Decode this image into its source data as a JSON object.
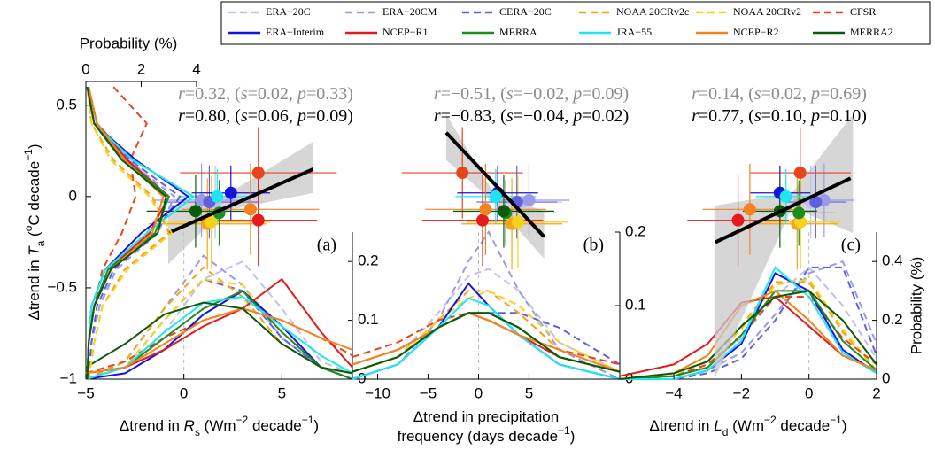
{
  "chart_data": {
    "type": "scatter",
    "ylabel": [
      {
        "text": "Δtrend in ",
        "format": "normal"
      },
      {
        "text": "T",
        "format": "italic"
      },
      {
        "text": "a",
        "format": "sub"
      },
      {
        "text": " (",
        "format": "normal"
      },
      {
        "text": "o",
        "format": "sup"
      },
      {
        "text": "C decade",
        "format": "normal"
      },
      {
        "text": "−1",
        "format": "sup"
      },
      {
        "text": ")",
        "format": "normal"
      }
    ],
    "ylim": [
      -1,
      0.63
    ],
    "yticks": [
      {
        "value": -1,
        "label": "−1"
      },
      {
        "value": -0.5,
        "label": "−0.5"
      },
      0,
      0.5
    ],
    "top_xlabel": "Probability (%)",
    "top_xlim": [
      0,
      4
    ],
    "top_xticks": [
      0,
      2,
      4
    ],
    "density_ylabel": "Probability (%)",
    "ta_grid": [
      -1,
      -0.8,
      -0.6,
      -0.4,
      -0.2,
      0,
      0.2,
      0.4,
      0.6
    ],
    "panels": [
      {
        "label": "(a)",
        "xlabel": [
          [
            {
              "text": "Δtrend in ",
              "format": "normal"
            },
            {
              "text": "R",
              "format": "italic"
            },
            {
              "text": "s",
              "format": "sub"
            },
            {
              "text": " (Wm",
              "format": "normal"
            },
            {
              "text": "−2",
              "format": "sup"
            },
            {
              "text": " decade",
              "format": "normal"
            },
            {
              "text": "−1",
              "format": "sup"
            },
            {
              "text": ")",
              "format": "normal"
            }
          ]
        ],
        "xlim": [
          -5,
          8.6
        ],
        "xticks": [
          {
            "value": -5,
            "label": "−5"
          },
          0,
          5
        ],
        "density_ylim": [
          0,
          0.25
        ],
        "density_yticks": [
          0,
          0.1,
          0.2
        ],
        "density_x": [
          -5,
          -3,
          -1,
          1,
          3,
          5,
          7,
          8.6
        ],
        "fit": {
          "x": [
            -0.8,
            6.6
          ],
          "y": [
            -0.2,
            0.15
          ]
        },
        "band": {
          "x": [
            -0.8,
            2,
            6.6
          ],
          "lower": [
            -0.37,
            -0.08,
            0.02
          ],
          "upper": [
            -0.05,
            0.0,
            0.3
          ]
        },
        "annotations": [
          {
            "color": "#8c8c8c",
            "parts": [
              "r",
              "=0.32, (",
              "s",
              "=0.02, ",
              "p",
              "=0.33)"
            ]
          },
          {
            "color": "#000000",
            "parts": [
              "r",
              "=0.80, (",
              "s",
              "=0.06, ",
              "p",
              "=0.09)"
            ]
          }
        ]
      },
      {
        "label": "(b)",
        "xlabel": [
          [
            {
              "text": "Δtrend in precipitation",
              "format": "normal"
            }
          ],
          [
            {
              "text": "frequency (days decade",
              "format": "normal"
            },
            {
              "text": "−1",
              "format": "sup"
            },
            {
              "text": ")",
              "format": "normal"
            }
          ]
        ],
        "xlim": [
          -12.5,
          14
        ],
        "xticks": [
          {
            "value": -10,
            "label": "−10"
          },
          {
            "value": -5,
            "label": "−5"
          },
          0,
          5
        ],
        "density_ylim": [
          0,
          0.2
        ],
        "density_yticks": [
          0,
          0.1,
          0.2
        ],
        "density_x": [
          -12.5,
          -8,
          -4,
          -1,
          1,
          4,
          8,
          14
        ],
        "fit": {
          "x": [
            -3.2,
            6.5
          ],
          "y": [
            0.35,
            -0.22
          ]
        },
        "band": {
          "x": [
            -3.2,
            1.5,
            6.5
          ],
          "lower": [
            0.2,
            -0.03,
            -0.34
          ],
          "upper": [
            0.45,
            0.02,
            -0.08
          ]
        },
        "annotations": [
          {
            "color": "#8c8c8c",
            "parts": [
              "r",
              "=−0.51, (",
              "s",
              "=−0.02, ",
              "p",
              "=0.09)"
            ]
          },
          {
            "color": "#000000",
            "parts": [
              "r",
              "=−0.83, (",
              "s",
              "=−0.04, ",
              "p",
              "=0.02)"
            ]
          }
        ]
      },
      {
        "label": "(c)",
        "xlabel": [
          [
            {
              "text": "Δtrend in ",
              "format": "normal"
            },
            {
              "text": "L",
              "format": "italic"
            },
            {
              "text": "d",
              "format": "sub"
            },
            {
              "text": " (Wm",
              "format": "normal"
            },
            {
              "text": "−2",
              "format": "sup"
            },
            {
              "text": " decade",
              "format": "normal"
            },
            {
              "text": "−1",
              "format": "sup"
            },
            {
              "text": ")",
              "format": "normal"
            }
          ]
        ],
        "xlim": [
          -5.6,
          2
        ],
        "xticks": [
          {
            "value": -4,
            "label": "−4"
          },
          {
            "value": -2,
            "label": "−2"
          },
          0,
          2
        ],
        "density_ylim": [
          0,
          0.5
        ],
        "density_yticks": [
          0,
          0.2,
          0.4
        ],
        "density_x": [
          -5.6,
          -4,
          -3,
          -2,
          -1,
          0,
          1,
          2
        ],
        "fit": {
          "x": [
            -2.77,
            1.23
          ],
          "y": [
            -0.25,
            0.1
          ]
        },
        "band": {
          "x": [
            -2.8,
            -0.5,
            1.3
          ],
          "lower": [
            -1.0,
            -0.06,
            -0.2
          ],
          "upper": [
            -0.05,
            0.02,
            0.45
          ]
        },
        "annotations": [
          {
            "color": "#8c8c8c",
            "parts": [
              "r",
              "=0.14, (",
              "s",
              "=0.02, ",
              "p",
              "=0.69)"
            ]
          },
          {
            "color": "#000000",
            "parts": [
              "r",
              "=0.77, (",
              "s",
              "=0.10, ",
              "p",
              "=0.10)"
            ]
          }
        ]
      }
    ],
    "series": [
      {
        "name": "ERA−20C",
        "color": "#c0c0ea",
        "dashed": true,
        "y": -0.03,
        "yerr": 0.2,
        "x": [
          1.6,
          4.3,
          0.05
        ],
        "xerr": [
          2.5,
          4,
          0.9
        ],
        "ta_density": [
          0.1,
          0.2,
          0.5,
          1.0,
          2.2,
          3.0,
          1.6,
          0.4,
          0.1
        ],
        "density": [
          [
            0,
            0.02,
            0.08,
            0.17,
            0.2,
            0.12,
            0.03,
            0.01
          ],
          [
            0.01,
            0.03,
            0.09,
            0.14,
            0.15,
            0.12,
            0.05,
            0.01
          ],
          [
            0,
            0.01,
            0.05,
            0.14,
            0.28,
            0.38,
            0.25,
            0.07
          ]
        ]
      },
      {
        "name": "ERA−20CM",
        "color": "#9a9ae6",
        "dashed": true,
        "y": -0.02,
        "yerr": 0.2,
        "x": [
          0.9,
          5.0,
          0.45
        ],
        "xerr": [
          2.5,
          4,
          0.9
        ],
        "ta_density": [
          0.1,
          0.2,
          0.5,
          1.1,
          2.6,
          3.2,
          1.5,
          0.3,
          0.1
        ],
        "density": [
          [
            0,
            0.03,
            0.12,
            0.21,
            0.16,
            0.07,
            0.02,
            0.01
          ],
          [
            0,
            0.02,
            0.08,
            0.16,
            0.2,
            0.12,
            0.04,
            0
          ],
          [
            0,
            0,
            0.03,
            0.09,
            0.22,
            0.36,
            0.4,
            0.12
          ]
        ]
      },
      {
        "name": "CERA−20C",
        "color": "#5f5fe0",
        "dashed": true,
        "y": -0.03,
        "yerr": 0.2,
        "x": [
          1.3,
          3.8,
          0.2
        ],
        "xerr": [
          2.5,
          4,
          0.9
        ],
        "ta_density": [
          0.1,
          0.2,
          0.4,
          1.0,
          2.5,
          3.4,
          1.6,
          0.4,
          0.1
        ],
        "density": [
          [
            0,
            0.02,
            0.1,
            0.17,
            0.15,
            0.07,
            0.02,
            0.01
          ],
          [
            0.01,
            0.03,
            0.07,
            0.09,
            0.09,
            0.09,
            0.07,
            0.02
          ],
          [
            0,
            0,
            0.02,
            0.07,
            0.2,
            0.38,
            0.38,
            0.08
          ]
        ]
      },
      {
        "name": "NOAA 20CRv2c",
        "color": "#f5a31a",
        "dashed": true,
        "y": -0.15,
        "yerr": 0.25,
        "x": [
          1.2,
          3.3,
          -0.35
        ],
        "xerr": [
          3,
          5,
          1.2
        ],
        "ta_density": [
          0.1,
          0.3,
          0.6,
          1.4,
          3.0,
          2.4,
          1.0,
          0.2,
          0.05
        ],
        "density": [
          [
            0,
            0.03,
            0.12,
            0.19,
            0.14,
            0.06,
            0.02,
            0.01
          ],
          [
            0.01,
            0.03,
            0.08,
            0.12,
            0.12,
            0.09,
            0.04,
            0.01
          ],
          [
            0,
            0.01,
            0.06,
            0.18,
            0.33,
            0.33,
            0.16,
            0.03
          ]
        ]
      },
      {
        "name": "NOAA 20CRv2",
        "color": "#f7d21a",
        "dashed": true,
        "y": -0.14,
        "yerr": 0.25,
        "x": [
          1.4,
          3.9,
          -0.25
        ],
        "xerr": [
          3,
          5,
          1.2
        ],
        "ta_density": [
          0.1,
          0.3,
          0.6,
          1.5,
          3.1,
          2.3,
          0.9,
          0.2,
          0.05
        ],
        "density": [
          [
            0,
            0.02,
            0.1,
            0.17,
            0.16,
            0.08,
            0.02,
            0.01
          ],
          [
            0.01,
            0.03,
            0.08,
            0.11,
            0.12,
            0.1,
            0.05,
            0.01
          ],
          [
            0,
            0.01,
            0.06,
            0.17,
            0.32,
            0.34,
            0.17,
            0.03
          ]
        ]
      },
      {
        "name": "CFSR",
        "color": "#e8441e",
        "dashed": true,
        "y": 0.13,
        "yerr": 0.25,
        "x": [
          3.8,
          -1.6,
          -0.26
        ],
        "xerr": [
          4,
          6,
          1.5
        ],
        "ta_density": [
          0.05,
          0.1,
          0.3,
          0.6,
          1.3,
          1.8,
          1.6,
          2.2,
          1.0
        ],
        "density": [
          [
            0.01,
            0.03,
            0.07,
            0.1,
            0.12,
            0.1,
            0.07,
            0.04
          ],
          [
            0.03,
            0.05,
            0.08,
            0.09,
            0.08,
            0.06,
            0.04,
            0.02
          ],
          [
            0,
            0.01,
            0.05,
            0.15,
            0.28,
            0.28,
            0.14,
            0.05
          ]
        ]
      },
      {
        "name": "ERA−Interim",
        "color": "#1414e0",
        "dashed": false,
        "y": 0.02,
        "yerr": 0.15,
        "x": [
          2.4,
          1.9,
          -0.86
        ],
        "xerr": [
          2,
          4,
          0.9
        ],
        "ta_density": [
          0.05,
          0.1,
          0.2,
          0.7,
          2.0,
          3.7,
          1.8,
          0.3,
          0.05
        ],
        "density": [
          [
            0,
            0.01,
            0.05,
            0.11,
            0.15,
            0.09,
            0.02,
            0
          ],
          [
            0,
            0.02,
            0.07,
            0.13,
            0.1,
            0.06,
            0.02,
            0
          ],
          [
            0,
            0,
            0.03,
            0.12,
            0.36,
            0.3,
            0.1,
            0.02
          ]
        ]
      },
      {
        "name": "NCEP−R1",
        "color": "#e41a1c",
        "dashed": false,
        "y": -0.13,
        "yerr": 0.25,
        "x": [
          3.8,
          0.4,
          -2.1
        ],
        "xerr": [
          3,
          6,
          1.5
        ],
        "ta_density": [
          0.05,
          0.1,
          0.3,
          0.8,
          2.3,
          3.0,
          1.5,
          0.4,
          0.1
        ],
        "density": [
          [
            0.01,
            0.02,
            0.05,
            0.09,
            0.12,
            0.17,
            0.08,
            0.02
          ],
          [
            0.02,
            0.04,
            0.07,
            0.09,
            0.08,
            0.06,
            0.03,
            0.01
          ],
          [
            0.01,
            0.05,
            0.12,
            0.26,
            0.28,
            0.18,
            0.08,
            0.03
          ]
        ]
      },
      {
        "name": "MERRA",
        "color": "#1e8c1e",
        "dashed": false,
        "y": -0.09,
        "yerr": 0.18,
        "x": [
          1.8,
          2.7,
          -0.3
        ],
        "xerr": [
          2.5,
          5,
          1.1
        ],
        "ta_density": [
          0.05,
          0.1,
          0.3,
          0.8,
          2.5,
          3.0,
          1.4,
          0.3,
          0.05
        ],
        "density": [
          [
            0,
            0.02,
            0.07,
            0.12,
            0.15,
            0.08,
            0.02,
            0
          ],
          [
            0.01,
            0.03,
            0.07,
            0.09,
            0.09,
            0.07,
            0.03,
            0.01
          ],
          [
            0,
            0.01,
            0.04,
            0.15,
            0.3,
            0.3,
            0.13,
            0.03
          ]
        ]
      },
      {
        "name": "JRA−55",
        "color": "#1ee6f0",
        "dashed": false,
        "y": 0.0,
        "yerr": 0.15,
        "x": [
          1.7,
          1.7,
          -0.68
        ],
        "xerr": [
          2,
          4,
          0.9
        ],
        "ta_density": [
          0.05,
          0.1,
          0.2,
          0.7,
          2.2,
          3.9,
          1.7,
          0.3,
          0.05
        ],
        "density": [
          [
            0,
            0.02,
            0.08,
            0.13,
            0.14,
            0.09,
            0.04,
            0.01
          ],
          [
            0,
            0.02,
            0.07,
            0.11,
            0.1,
            0.06,
            0.02,
            0
          ],
          [
            0,
            0,
            0.03,
            0.13,
            0.38,
            0.28,
            0.09,
            0.02
          ]
        ]
      },
      {
        "name": "NCEP−R2",
        "color": "#f5821e",
        "dashed": false,
        "y": -0.07,
        "yerr": 0.25,
        "x": [
          3.4,
          0.7,
          -1.75
        ],
        "xerr": [
          3.5,
          6,
          1.4
        ],
        "ta_density": [
          0.05,
          0.1,
          0.3,
          0.9,
          2.4,
          2.8,
          1.4,
          0.4,
          0.1
        ],
        "density": [
          [
            0.01,
            0.02,
            0.06,
            0.1,
            0.12,
            0.1,
            0.07,
            0.05
          ],
          [
            0.02,
            0.04,
            0.07,
            0.09,
            0.08,
            0.06,
            0.04,
            0.01
          ],
          [
            0,
            0.02,
            0.08,
            0.25,
            0.3,
            0.2,
            0.08,
            0.03
          ]
        ]
      },
      {
        "name": "MERRA2",
        "color": "#0a5a0a",
        "dashed": false,
        "y": -0.08,
        "yerr": 0.2,
        "x": [
          0.6,
          2.5,
          -0.86
        ],
        "xerr": [
          2.5,
          5,
          1.1
        ],
        "ta_density": [
          0.05,
          0.1,
          0.3,
          0.9,
          2.6,
          2.9,
          1.3,
          0.3,
          0.05
        ],
        "density": [
          [
            0.02,
            0.06,
            0.11,
            0.13,
            0.12,
            0.06,
            0.02,
            0.01
          ],
          [
            0.01,
            0.03,
            0.07,
            0.09,
            0.09,
            0.07,
            0.03,
            0.01
          ],
          [
            0,
            0.02,
            0.06,
            0.18,
            0.28,
            0.3,
            0.2,
            0.05
          ]
        ]
      }
    ]
  }
}
